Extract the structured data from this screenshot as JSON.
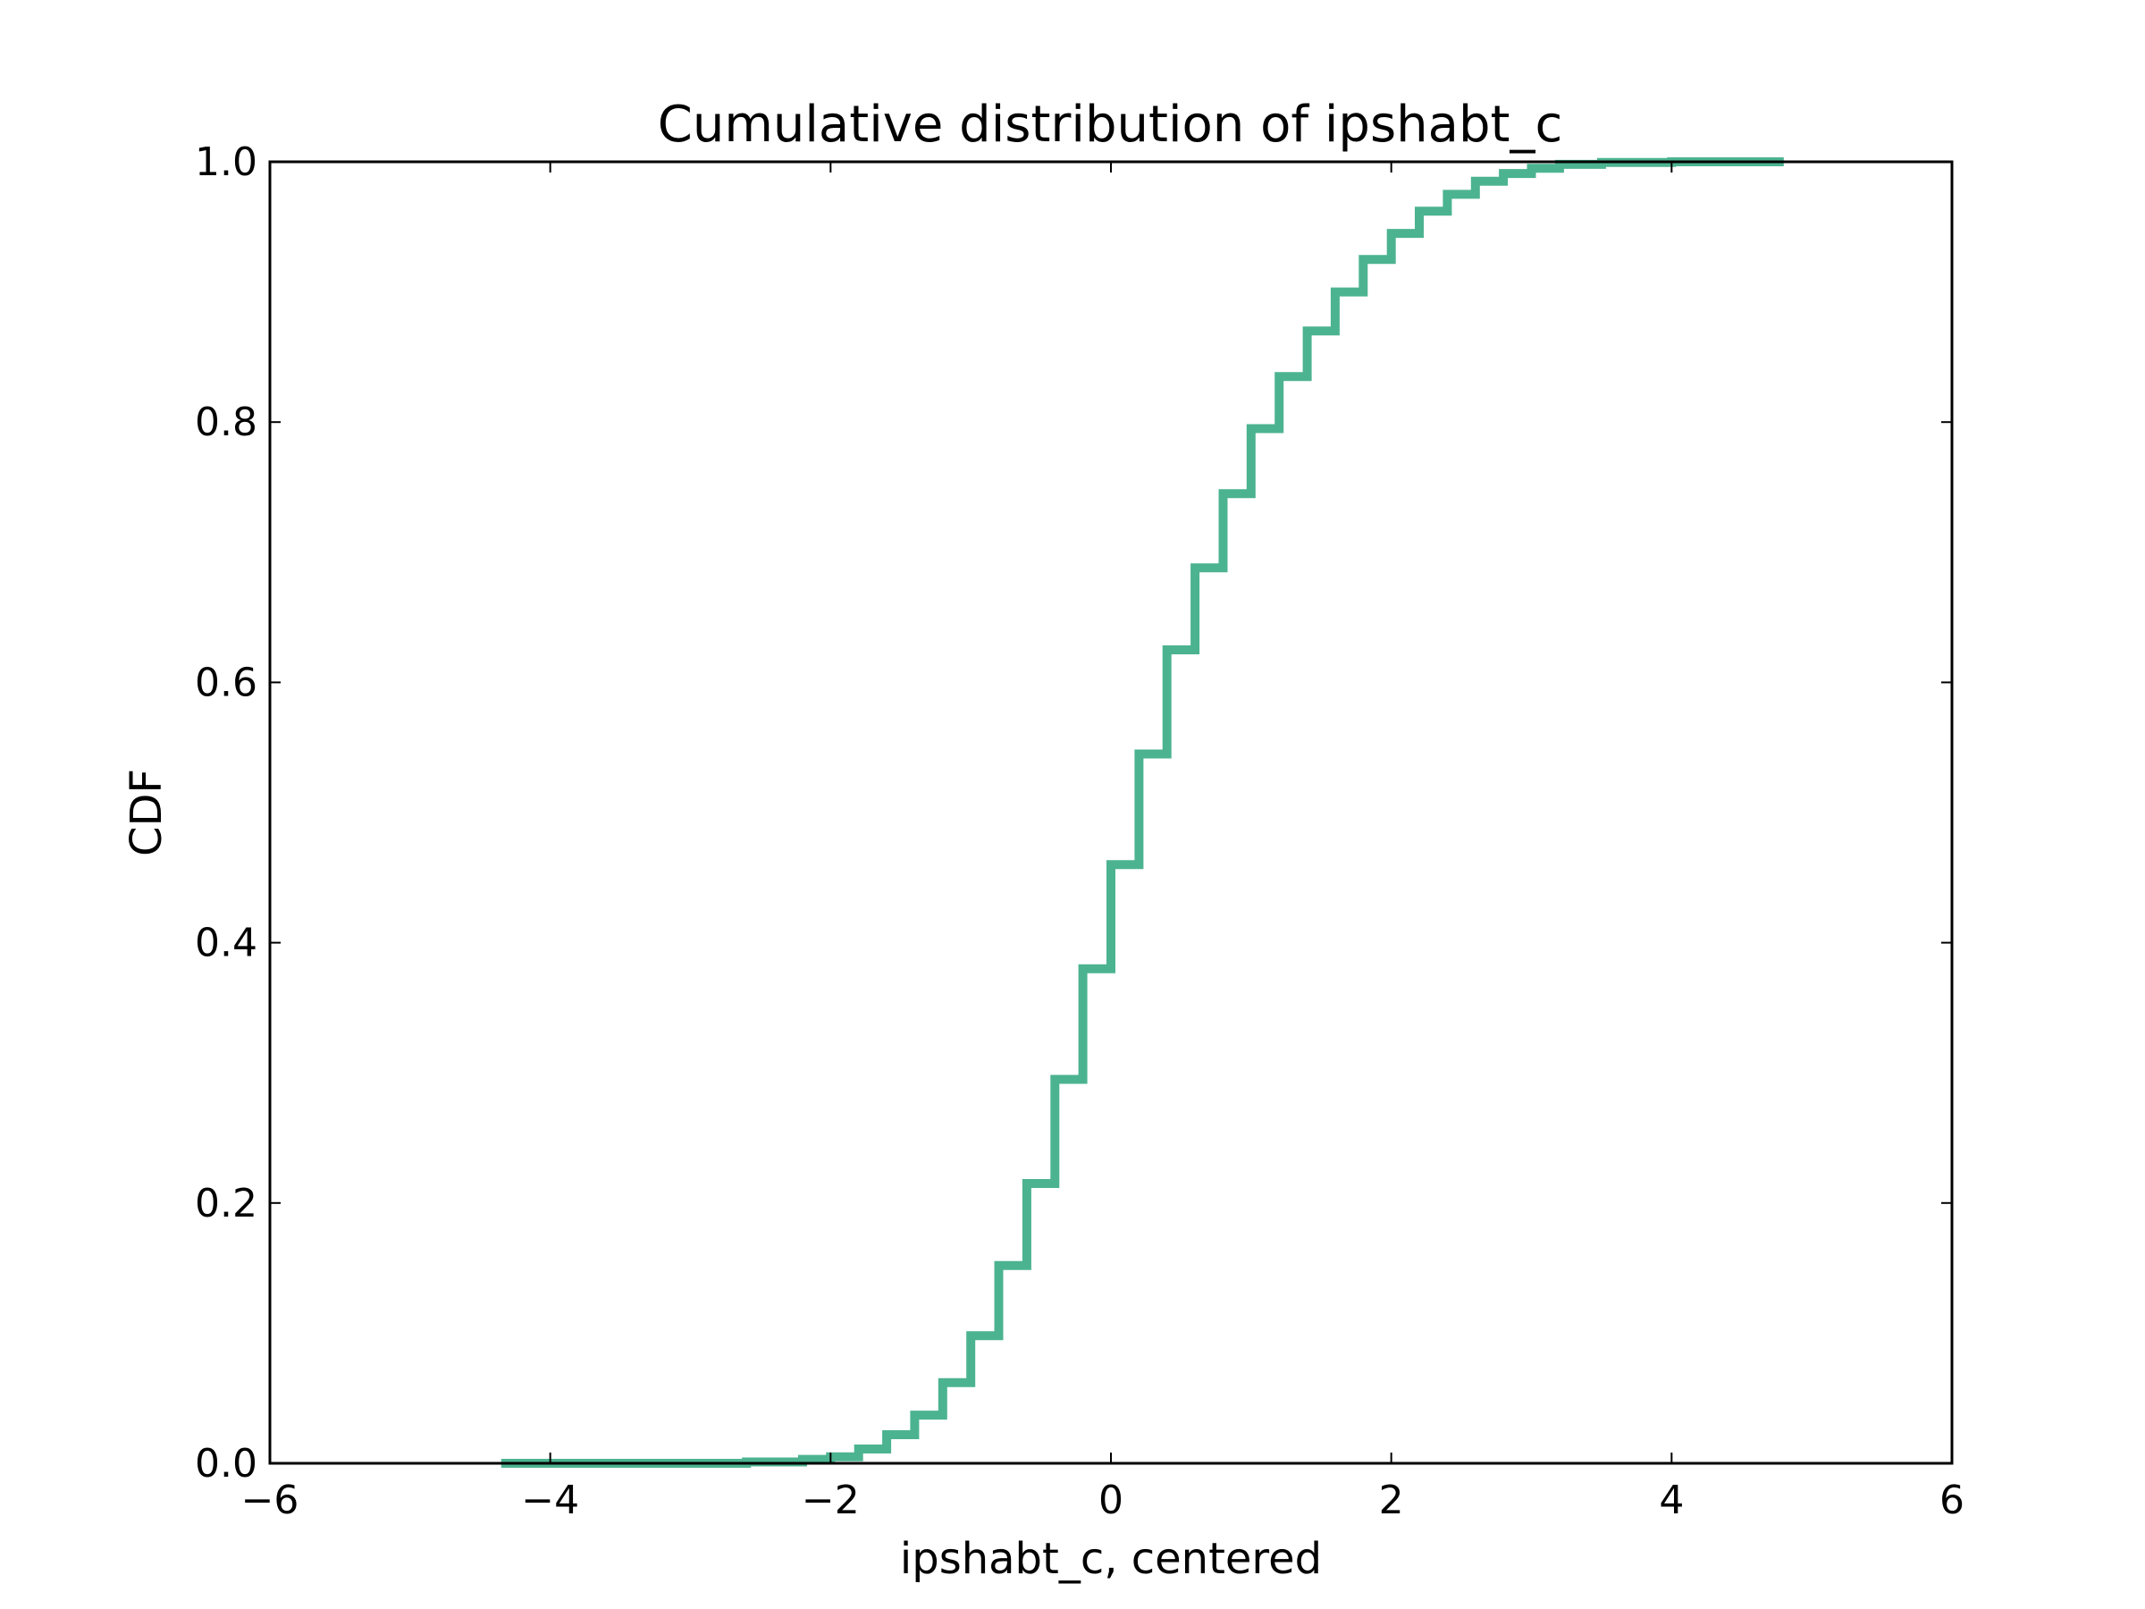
{
  "chart_data": {
    "type": "line",
    "title": "Cumulative distribution of ipshabt_c",
    "xlabel": "ipshabt_c, centered",
    "ylabel": "CDF",
    "xlim": [
      -6,
      6
    ],
    "ylim": [
      0.0,
      1.0
    ],
    "x_ticks": [
      -6,
      -4,
      -2,
      0,
      2,
      4,
      6
    ],
    "x_tick_labels": [
      "−6",
      "−4",
      "−2",
      "0",
      "2",
      "4",
      "6"
    ],
    "y_ticks": [
      0.0,
      0.2,
      0.4,
      0.6,
      0.8,
      1.0
    ],
    "y_tick_labels": [
      "0.0",
      "0.2",
      "0.4",
      "0.6",
      "0.8",
      "1.0"
    ],
    "grid": false,
    "line_color": "#4cb391",
    "series": [
      {
        "style": "step",
        "x": [
          -4.35,
          -3.0,
          -2.6,
          -2.2,
          -2.0,
          -1.8,
          -1.6,
          -1.4,
          -1.2,
          -1.0,
          -0.8,
          -0.6,
          -0.4,
          -0.2,
          0.0,
          0.2,
          0.4,
          0.6,
          0.8,
          1.0,
          1.2,
          1.4,
          1.6,
          1.8,
          2.0,
          2.2,
          2.4,
          2.6,
          2.8,
          3.0,
          3.2,
          3.5,
          4.0,
          4.8
        ],
        "y": [
          0.0,
          0.0,
          0.001,
          0.003,
          0.005,
          0.011,
          0.022,
          0.037,
          0.062,
          0.098,
          0.152,
          0.215,
          0.295,
          0.38,
          0.46,
          0.545,
          0.625,
          0.688,
          0.745,
          0.795,
          0.835,
          0.87,
          0.9,
          0.925,
          0.945,
          0.962,
          0.975,
          0.985,
          0.991,
          0.995,
          0.998,
          0.9995,
          1.0,
          1.0
        ]
      }
    ]
  }
}
